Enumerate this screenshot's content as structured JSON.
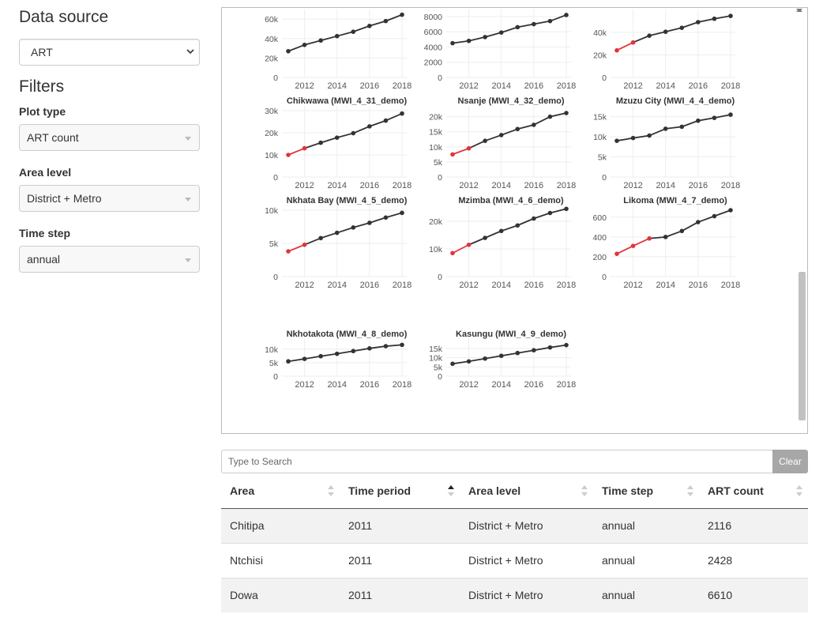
{
  "sidebar": {
    "data_source_title": "Data source",
    "data_source_value": "ART",
    "filters_title": "Filters",
    "plot_type_label": "Plot type",
    "plot_type_value": "ART count",
    "area_level_label": "Area level",
    "area_level_value": "District + Metro",
    "time_step_label": "Time step",
    "time_step_value": "annual"
  },
  "search": {
    "placeholder": "Type to Search",
    "clear_label": "Clear"
  },
  "table": {
    "headers": [
      "Area",
      "Time period",
      "Area level",
      "Time step",
      "ART count"
    ],
    "rows": [
      [
        "Chitipa",
        "2011",
        "District + Metro",
        "annual",
        "2116"
      ],
      [
        "Ntchisi",
        "2011",
        "District + Metro",
        "annual",
        "2428"
      ],
      [
        "Dowa",
        "2011",
        "District + Metro",
        "annual",
        "6610"
      ]
    ]
  },
  "colors": {
    "highlight": "#e0353b",
    "line": "#333333"
  },
  "chart_data": {
    "type": "line",
    "x": [
      2011,
      2012,
      2013,
      2014,
      2015,
      2016,
      2017,
      2018
    ],
    "x_ticks": [
      2012,
      2014,
      2016,
      2018
    ],
    "panels": [
      {
        "title": "",
        "y_ticks": [
          0,
          20000,
          40000,
          60000
        ],
        "y_tick_labels": [
          "0",
          "20k",
          "40k",
          "60k"
        ],
        "ylim": [
          0,
          65000
        ],
        "values": [
          27000,
          33500,
          38000,
          42500,
          47000,
          53000,
          58000,
          64500
        ],
        "highlight_until": 0
      },
      {
        "title": "",
        "y_ticks": [
          0,
          2000,
          4000,
          6000,
          8000
        ],
        "y_tick_labels": [
          "0",
          "2000",
          "4000",
          "6000",
          "8000"
        ],
        "ylim": [
          0,
          8300
        ],
        "values": [
          4500,
          4800,
          5300,
          5900,
          6600,
          7000,
          7400,
          8200
        ],
        "highlight_until": 0
      },
      {
        "title": "",
        "y_ticks": [
          0,
          20000,
          40000
        ],
        "y_tick_labels": [
          "0",
          "20k",
          "40k"
        ],
        "ylim": [
          0,
          56000
        ],
        "values": [
          24000,
          31000,
          37000,
          40500,
          44000,
          49000,
          52000,
          54500
        ],
        "highlight_until": 1
      },
      {
        "title": "Chikwawa (MWI_4_31_demo)",
        "y_ticks": [
          0,
          10000,
          20000,
          30000
        ],
        "y_tick_labels": [
          "0",
          "10k",
          "20k",
          "30k"
        ],
        "ylim": [
          0,
          30000
        ],
        "values": [
          10000,
          13000,
          15500,
          17800,
          19800,
          22900,
          25500,
          28700
        ],
        "highlight_until": 1
      },
      {
        "title": "Nsanje (MWI_4_32_demo)",
        "y_ticks": [
          0,
          5000,
          10000,
          15000,
          20000
        ],
        "y_tick_labels": [
          "0",
          "5k",
          "10k",
          "15k",
          "20k"
        ],
        "ylim": [
          0,
          22000
        ],
        "values": [
          7500,
          9500,
          12000,
          13900,
          15900,
          17300,
          20000,
          21200
        ],
        "highlight_until": 1
      },
      {
        "title": "Mzuzu City (MWI_4_4_demo)",
        "y_ticks": [
          0,
          5000,
          10000,
          15000
        ],
        "y_tick_labels": [
          "0",
          "5k",
          "10k",
          "15k"
        ],
        "ylim": [
          0,
          16500
        ],
        "values": [
          9000,
          9700,
          10300,
          12000,
          12500,
          14000,
          14700,
          15500
        ],
        "highlight_until": 0
      },
      {
        "title": "Nkhata Bay (MWI_4_5_demo)",
        "y_ticks": [
          0,
          5000,
          10000
        ],
        "y_tick_labels": [
          "0",
          "5k",
          "10k"
        ],
        "ylim": [
          0,
          10000
        ],
        "values": [
          3800,
          4800,
          5800,
          6600,
          7400,
          8100,
          8900,
          9600
        ],
        "highlight_until": 1
      },
      {
        "title": "Mzimba (MWI_4_6_demo)",
        "y_ticks": [
          0,
          10000,
          20000
        ],
        "y_tick_labels": [
          "0",
          "10k",
          "20k"
        ],
        "ylim": [
          0,
          24000
        ],
        "values": [
          8500,
          11500,
          14000,
          16500,
          18500,
          21000,
          23000,
          24500
        ],
        "highlight_until": 1
      },
      {
        "title": "Likoma (MWI_4_7_demo)",
        "y_ticks": [
          0,
          200,
          400,
          600
        ],
        "y_tick_labels": [
          "0",
          "200",
          "400",
          "600"
        ],
        "ylim": [
          0,
          670
        ],
        "values": [
          230,
          310,
          385,
          400,
          460,
          550,
          610,
          670
        ],
        "highlight_until": 2
      },
      {
        "title": "Nkhotakota (MWI_4_8_demo)",
        "y_ticks": [
          0,
          5000,
          10000
        ],
        "y_tick_labels": [
          "0",
          "5k",
          "10k"
        ],
        "ylim": [
          0,
          12000
        ],
        "values": [
          5500,
          6400,
          7400,
          8300,
          9300,
          10300,
          11100,
          11600
        ],
        "highlight_until": 0
      },
      {
        "title": "Kasungu (MWI_4_9_demo)",
        "y_ticks": [
          0,
          5000,
          10000,
          15000
        ],
        "y_tick_labels": [
          "0",
          "5k",
          "10k",
          "15k"
        ],
        "ylim": [
          0,
          17500
        ],
        "values": [
          6700,
          8000,
          9500,
          11000,
          12500,
          14000,
          15500,
          16800
        ],
        "highlight_until": 0
      }
    ]
  }
}
